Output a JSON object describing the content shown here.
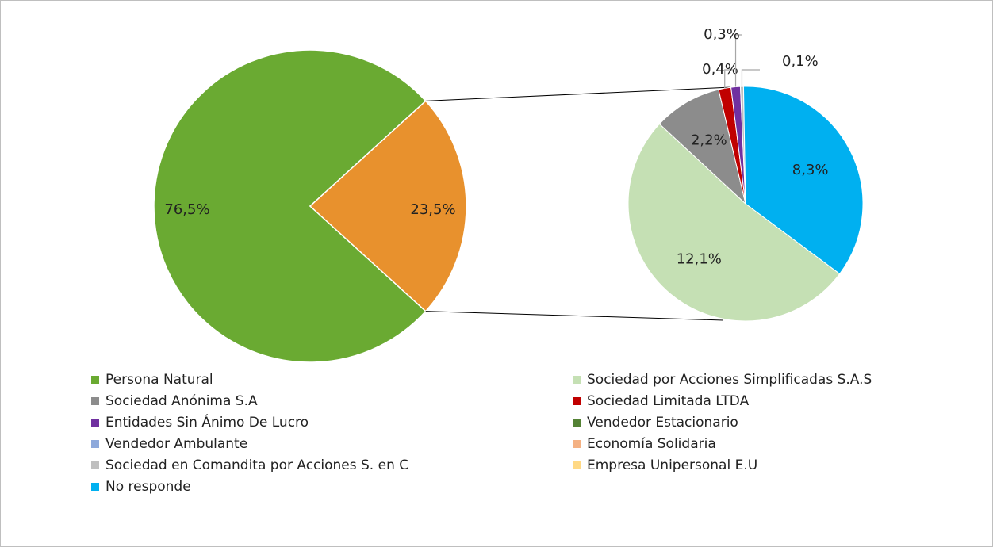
{
  "chart_data": {
    "type": "pie",
    "categories": [
      "Persona Natural",
      "Sociedad por Acciones Simplificadas S.A.S",
      "Sociedad Anónima S.A",
      "Sociedad Limitada LTDA",
      "Entidades Sin Ánimo De Lucro",
      "Vendedor Estacionario",
      "Vendedor Ambulante",
      "Economía Solidaria",
      "Sociedad en Comandita por Acciones S. en C",
      "Empresa Unipersonal E.U",
      "No responde"
    ],
    "values": [
      76.5,
      12.1,
      2.2,
      0.4,
      0.3,
      0,
      0,
      0,
      0.1,
      0,
      8.3
    ],
    "value_labels": [
      "76,5%",
      "12,1%",
      "2,2%",
      "0,4%",
      "0,3%",
      null,
      null,
      null,
      "0,1%",
      null,
      "8,3%"
    ],
    "colors": [
      "#6aaa32",
      "#c5e0b4",
      "#8c8c8c",
      "#c00000",
      "#7030a0",
      "#548235",
      "#8ea9db",
      "#f4b183",
      "#bfbfbf",
      "#ffd985",
      "#00b0f0"
    ],
    "other_value": 23.5,
    "other_value_label": "23,5%",
    "other_color": "#e8912d"
  }
}
